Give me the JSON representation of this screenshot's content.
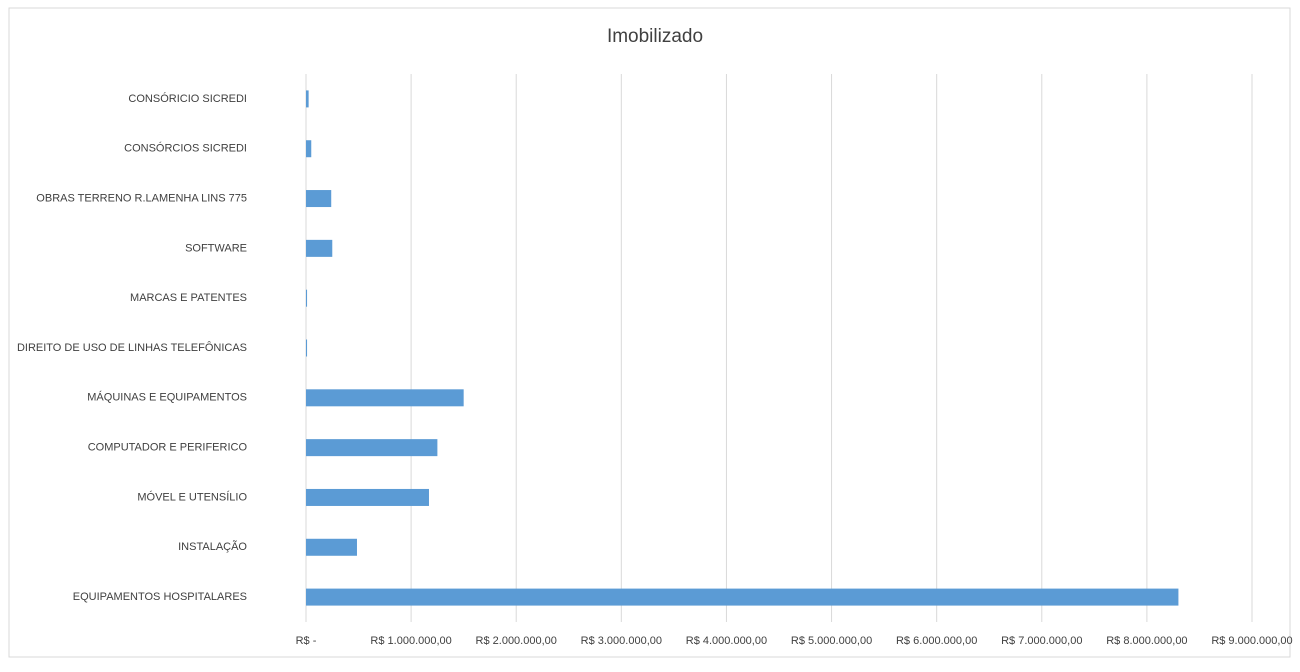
{
  "chart_data": {
    "type": "barh",
    "title": "Imobilizado",
    "categories": [
      "CONSÓRICIO SICREDI",
      "CONSÓRCIOS SICREDI",
      "OBRAS TERRENO R.LAMENHA LINS 775",
      "SOFTWARE",
      "MARCAS E PATENTES",
      "DIREITO DE USO DE LINHAS TELEFÔNICAS",
      "MÁQUINAS E EQUIPAMENTOS",
      "COMPUTADOR E PERIFERICO",
      "MÓVEL E UTENSÍLIO",
      "INSTALAÇÃO",
      "EQUIPAMENTOS HOSPITALARES"
    ],
    "values": [
      25000,
      50000,
      240000,
      250000,
      10000,
      10000,
      1500000,
      1250000,
      1170000,
      485000,
      8300000
    ],
    "color": "#5b9bd5",
    "xlim": [
      0,
      9000000
    ],
    "xticks": [
      {
        "value": 0,
        "label": "R$ -"
      },
      {
        "value": 1000000,
        "label": "R$ 1.000.000,00"
      },
      {
        "value": 2000000,
        "label": "R$ 2.000.000,00"
      },
      {
        "value": 3000000,
        "label": "R$ 3.000.000,00"
      },
      {
        "value": 4000000,
        "label": "R$ 4.000.000,00"
      },
      {
        "value": 5000000,
        "label": "R$ 5.000.000,00"
      },
      {
        "value": 6000000,
        "label": "R$ 6.000.000,00"
      },
      {
        "value": 7000000,
        "label": "R$ 7.000.000,00"
      },
      {
        "value": 8000000,
        "label": "R$ 8.000.000,00"
      },
      {
        "value": 9000000,
        "label": "R$ 9.000.000,00"
      }
    ],
    "grid": true
  }
}
